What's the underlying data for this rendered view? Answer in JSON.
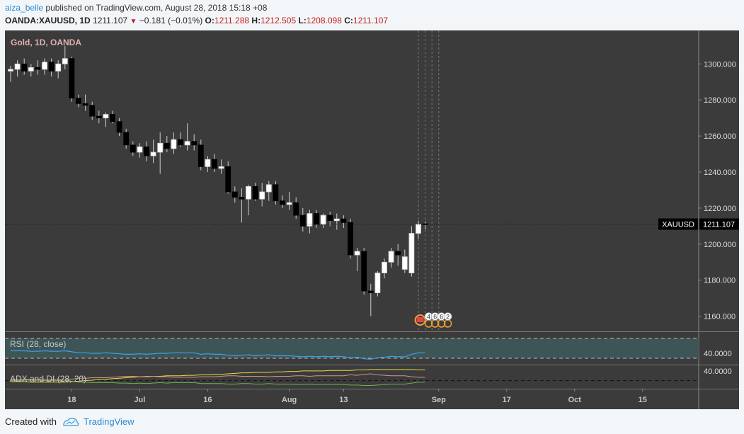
{
  "header": {
    "user": "aiza_belle",
    "published_text": "published on TradingView.com, August 28, 2018 15:18 +08",
    "symbol": "OANDA:XAUUSD, 1D",
    "last": "1211.107",
    "change": "−0.181 (−0.01%)",
    "o_label": "O:",
    "o_value": "1211.288",
    "h_label": "H:",
    "h_value": "1212.505",
    "l_label": "L:",
    "l_value": "1208.098",
    "c_label": "C:",
    "c_value": "1211.107"
  },
  "footer": {
    "created_with": "Created with",
    "brand": "TradingView"
  },
  "colors": {
    "background": "#3b3b3b",
    "up_candle": "#ffffff",
    "down_candle": "#000000",
    "rsi_band": "#3d5557",
    "rsi_line": "#3f9fe8",
    "adx_line": "#e6dc3c",
    "di_plus": "#6fb04f",
    "di_minus": "#d98e8e",
    "price_axis_text": "#dddddd",
    "title_text": "#e0b0b0"
  },
  "chart_data": {
    "type": "candlestick",
    "title": "Gold, 1D, OANDA",
    "symbol_label": "XAUUSD",
    "last_price": 1211.107,
    "last_price_label": "1211.107",
    "ylim": [
      1152,
      1317
    ],
    "y_ticks": [
      1300,
      1280,
      1260,
      1240,
      1220,
      1200,
      1180,
      1160
    ],
    "y_tick_labels": [
      "1300.000",
      "1280.000",
      "1260.000",
      "1240.000",
      "1220.000",
      "1200.000",
      "1180.000",
      "1160.000"
    ],
    "x_tick_labels": [
      {
        "label": "18",
        "bar": 9
      },
      {
        "label": "Jul",
        "bar": 19
      },
      {
        "label": "16",
        "bar": 29
      },
      {
        "label": "Aug",
        "bar": 41
      },
      {
        "label": "13",
        "bar": 49
      },
      {
        "label": "Sep",
        "bar": 63
      },
      {
        "label": "17",
        "bar": 73
      },
      {
        "label": "Oct",
        "bar": 83
      },
      {
        "label": "15",
        "bar": 93
      }
    ],
    "future_markers": [
      60,
      61,
      62,
      63
    ],
    "event_badges": [
      "4",
      "6",
      "6",
      "2"
    ],
    "candles": [
      [
        1296,
        1299,
        1290,
        1297
      ],
      [
        1297,
        1302,
        1293,
        1300
      ],
      [
        1300,
        1303,
        1294,
        1296
      ],
      [
        1296,
        1300,
        1293,
        1298
      ],
      [
        1298,
        1302,
        1294,
        1297
      ],
      [
        1297,
        1303,
        1294,
        1301
      ],
      [
        1301,
        1303,
        1293,
        1296
      ],
      [
        1296,
        1302,
        1292,
        1300
      ],
      [
        1300,
        1310,
        1297,
        1303
      ],
      [
        1303,
        1304,
        1279,
        1281
      ],
      [
        1281,
        1283,
        1276,
        1278
      ],
      [
        1278,
        1283,
        1274,
        1277
      ],
      [
        1277,
        1279,
        1269,
        1271
      ],
      [
        1271,
        1274,
        1267,
        1270
      ],
      [
        1270,
        1273,
        1265,
        1272
      ],
      [
        1272,
        1274,
        1267,
        1268
      ],
      [
        1268,
        1270,
        1260,
        1262
      ],
      [
        1262,
        1264,
        1253,
        1255
      ],
      [
        1255,
        1257,
        1249,
        1251
      ],
      [
        1251,
        1256,
        1248,
        1254
      ],
      [
        1254,
        1257,
        1246,
        1249
      ],
      [
        1249,
        1258,
        1245,
        1251
      ],
      [
        1251,
        1262,
        1239,
        1256
      ],
      [
        1256,
        1260,
        1251,
        1253
      ],
      [
        1253,
        1262,
        1250,
        1258
      ],
      [
        1258,
        1262,
        1254,
        1255
      ],
      [
        1255,
        1267,
        1252,
        1257
      ],
      [
        1257,
        1261,
        1252,
        1255
      ],
      [
        1255,
        1258,
        1241,
        1243
      ],
      [
        1243,
        1249,
        1240,
        1247
      ],
      [
        1247,
        1250,
        1240,
        1242
      ],
      [
        1242,
        1247,
        1239,
        1243
      ],
      [
        1243,
        1246,
        1228,
        1229
      ],
      [
        1229,
        1232,
        1223,
        1226
      ],
      [
        1226,
        1231,
        1212,
        1225
      ],
      [
        1225,
        1233,
        1216,
        1232
      ],
      [
        1232,
        1234,
        1224,
        1225
      ],
      [
        1225,
        1234,
        1221,
        1229
      ],
      [
        1229,
        1235,
        1224,
        1233
      ],
      [
        1233,
        1235,
        1222,
        1224
      ],
      [
        1224,
        1227,
        1220,
        1222
      ],
      [
        1222,
        1229,
        1219,
        1223
      ],
      [
        1223,
        1226,
        1214,
        1216
      ],
      [
        1216,
        1220,
        1207,
        1210
      ],
      [
        1210,
        1219,
        1206,
        1217
      ],
      [
        1217,
        1219,
        1209,
        1211
      ],
      [
        1211,
        1217,
        1209,
        1216
      ],
      [
        1216,
        1218,
        1210,
        1213
      ],
      [
        1213,
        1217,
        1208,
        1214
      ],
      [
        1214,
        1216,
        1209,
        1212
      ],
      [
        1212,
        1214,
        1192,
        1194
      ],
      [
        1194,
        1198,
        1185,
        1196
      ],
      [
        1196,
        1198,
        1172,
        1174
      ],
      [
        1174,
        1178,
        1160,
        1173
      ],
      [
        1173,
        1185,
        1171,
        1184
      ],
      [
        1184,
        1192,
        1181,
        1190
      ],
      [
        1190,
        1198,
        1187,
        1196
      ],
      [
        1196,
        1200,
        1188,
        1194
      ],
      [
        1186,
        1197,
        1184,
        1193
      ],
      [
        1184,
        1210,
        1182,
        1206
      ],
      [
        1206,
        1213,
        1203,
        1211
      ],
      [
        1211.288,
        1212.505,
        1208.098,
        1211.107
      ]
    ],
    "rsi": {
      "label": "RSI (28, close)",
      "level_label": "40.0000",
      "ylim": [
        20,
        80
      ],
      "upper_band": 70,
      "lower_band": 30,
      "values": [
        45,
        45,
        45,
        44,
        44,
        45,
        44,
        44,
        45,
        43,
        41,
        41,
        40,
        40,
        41,
        40,
        39,
        38,
        38,
        39,
        38,
        39,
        40,
        40,
        41,
        41,
        41,
        41,
        38,
        39,
        38,
        38,
        36,
        35,
        36,
        37,
        35,
        36,
        37,
        35,
        35,
        35,
        34,
        33,
        34,
        33,
        34,
        33,
        34,
        33,
        31,
        32,
        29,
        28,
        31,
        32,
        34,
        33,
        33,
        38,
        41,
        41
      ]
    },
    "adx": {
      "label": "ADX and DI (28, 20)",
      "level_label": "40.0000",
      "ylim": [
        5,
        50
      ],
      "level": 20,
      "adx_values": [
        18,
        18,
        18,
        17,
        17,
        17,
        17,
        17,
        17,
        18,
        19,
        20,
        21,
        22,
        23,
        24,
        25,
        26,
        27,
        28,
        28,
        29,
        29,
        30,
        30,
        30,
        31,
        31,
        32,
        32,
        33,
        33,
        34,
        35,
        36,
        36,
        37,
        37,
        37,
        38,
        38,
        39,
        39,
        40,
        40,
        40,
        40,
        41,
        41,
        41,
        41,
        42,
        42,
        43,
        43,
        43,
        43,
        43,
        43,
        43,
        42,
        42
      ],
      "di_plus_values": [
        20,
        20,
        21,
        21,
        21,
        20,
        20,
        20,
        21,
        19,
        17,
        17,
        16,
        16,
        16,
        16,
        15,
        15,
        14,
        15,
        14,
        15,
        16,
        15,
        16,
        16,
        16,
        16,
        14,
        14,
        14,
        14,
        13,
        13,
        14,
        14,
        13,
        13,
        14,
        13,
        13,
        13,
        12,
        12,
        13,
        12,
        12,
        12,
        12,
        12,
        11,
        11,
        10,
        10,
        11,
        12,
        13,
        13,
        13,
        15,
        17,
        17
      ],
      "di_minus_values": [
        23,
        23,
        23,
        23,
        22,
        22,
        22,
        22,
        21,
        23,
        25,
        25,
        26,
        26,
        26,
        27,
        28,
        29,
        29,
        28,
        29,
        29,
        28,
        28,
        27,
        27,
        27,
        27,
        28,
        28,
        28,
        29,
        30,
        30,
        29,
        29,
        29,
        29,
        28,
        29,
        29,
        29,
        30,
        30,
        29,
        30,
        30,
        30,
        30,
        30,
        32,
        31,
        33,
        34,
        32,
        31,
        30,
        30,
        30,
        28,
        27,
        27
      ]
    }
  }
}
